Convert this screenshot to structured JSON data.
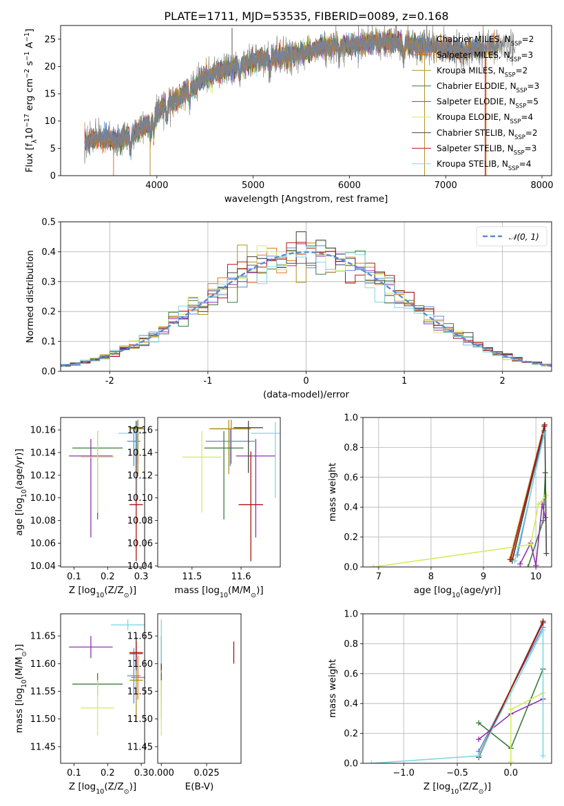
{
  "title": "PLATE=1711, MJD=53535, FIBERID=0089, z=0.168",
  "colors": [
    "#5a88d8",
    "#e07020",
    "#b09020",
    "#3a7a3a",
    "#9030b0",
    "#d4ea60",
    "#444444",
    "#b01010",
    "#7dd8e0"
  ],
  "series_names": [
    "Chabrier MILES, N_SSP=2",
    "Salpeter MILES, N_SSP=3",
    "Kroupa MILES, N_SSP=2",
    "Chabrier ELODIE, N_SSP=3",
    "Salpeter ELODIE, N_SSP=5",
    "Kroupa ELODIE, N_SSP=4",
    "Chabrier STELIB, N_SSP=2",
    "Salpeter STELIB, N_SSP=3",
    "Kroupa STELIB, N_SSP=4"
  ],
  "chart_data": [
    {
      "id": "spectrum",
      "type": "line",
      "xlabel": "wavelength [Angstrom, rest frame]",
      "ylabel": "Flux [f_λ 10^-17 erg cm^-2 s^-1 A^-1]",
      "xlim": [
        3000,
        8100
      ],
      "ylim": [
        0,
        27.5
      ],
      "xticks": [
        4000,
        5000,
        6000,
        7000,
        8000
      ],
      "yticks": [
        0,
        5,
        10,
        15,
        20,
        25
      ],
      "legend": "right",
      "continuum_x": [
        3250,
        3400,
        3600,
        3800,
        3950,
        4050,
        4200,
        4350,
        4500,
        4700,
        4900,
        5100,
        5400,
        5700,
        6000,
        6400,
        6800,
        7200,
        7600
      ],
      "continuum_y": [
        6.0,
        7.0,
        6.5,
        8.0,
        10.0,
        12.5,
        14.0,
        16.0,
        18.0,
        19.5,
        20.5,
        21.5,
        22.0,
        23.5,
        24.0,
        24.5,
        23.5,
        23.0,
        24.0
      ]
    },
    {
      "id": "residuals",
      "type": "line",
      "xlabel": "(data-model)/error",
      "ylabel": "Normed distribution",
      "xlim": [
        -2.5,
        2.5
      ],
      "ylim": [
        0,
        0.5
      ],
      "xticks": [
        -2,
        -1,
        0,
        1,
        2
      ],
      "yticks": [
        0.0,
        0.1,
        0.2,
        0.3,
        0.4,
        0.5
      ],
      "grid": true,
      "legend": "top-right",
      "legend_label": "𝒩(0, 1)"
    },
    {
      "id": "age-vs-z",
      "type": "scatter",
      "xlabel": "Z [log10(Z/Z☉)]",
      "ylabel": "age  [log10(age/yr)]",
      "xlim": [
        0.06,
        0.31
      ],
      "ylim": [
        10.039,
        10.171
      ],
      "xticks": [
        0.1,
        0.2,
        0.3
      ],
      "yticks": [
        10.04,
        10.06,
        10.08,
        10.1,
        10.12,
        10.14,
        10.16
      ],
      "points": [
        {
          "x": 0.278,
          "y": 10.15,
          "xerr": 0.02,
          "yerr_lo": 0.022,
          "yerr_hi": 0.011
        },
        {
          "x": 0.29,
          "y": 10.161,
          "xerr": 0.02,
          "yerr_lo": 0.031,
          "yerr_hi": 0.008
        },
        {
          "x": 0.29,
          "y": 10.161,
          "xerr": 0.02,
          "yerr_lo": 0.04,
          "yerr_hi": 0.008
        },
        {
          "x": 0.17,
          "y": 10.144,
          "xerr": 0.075,
          "yerr_lo": 0.063,
          "yerr_hi": 0.015
        },
        {
          "x": 0.15,
          "y": 10.137,
          "xerr": 0.065,
          "yerr_lo": 0.072,
          "yerr_hi": 0.015
        },
        {
          "x": 0.17,
          "y": 10.136,
          "xerr": 0.05,
          "yerr_lo": 0.049,
          "yerr_hi": 0.023
        },
        {
          "x": 0.285,
          "y": 10.162,
          "xerr": 0.02,
          "yerr_lo": 0.04,
          "yerr_hi": 0.006
        },
        {
          "x": 0.285,
          "y": 10.094,
          "xerr": 0.02,
          "yerr_lo": 0.05,
          "yerr_hi": 0.047
        },
        {
          "x": 0.287,
          "y": 10.157,
          "xerr": 0.055,
          "yerr_lo": 0.057,
          "yerr_hi": 0.01
        }
      ]
    },
    {
      "id": "age-vs-mass",
      "type": "scatter",
      "xlabel": "mass [log10(M/M☉)]",
      "xlim": [
        11.43,
        11.68
      ],
      "ylim": [
        10.039,
        10.171
      ],
      "xticks": [
        11.5,
        11.6
      ],
      "yticks": [
        10.04,
        10.06,
        10.08,
        10.1,
        10.12,
        10.14,
        10.16
      ],
      "points": [
        {
          "x": 11.578,
          "y": 10.15,
          "xerr": 0.05,
          "yerr_lo": 0.022,
          "yerr_hi": 0.011
        },
        {
          "x": 11.58,
          "y": 10.161,
          "xerr": 0.04,
          "yerr_lo": 0.031,
          "yerr_hi": 0.008
        },
        {
          "x": 11.575,
          "y": 10.161,
          "xerr": 0.04,
          "yerr_lo": 0.04,
          "yerr_hi": 0.008
        },
        {
          "x": 11.565,
          "y": 10.144,
          "xerr": 0.04,
          "yerr_lo": 0.063,
          "yerr_hi": 0.015
        },
        {
          "x": 11.63,
          "y": 10.137,
          "xerr": 0.04,
          "yerr_lo": 0.072,
          "yerr_hi": 0.015
        },
        {
          "x": 11.52,
          "y": 10.136,
          "xerr": 0.04,
          "yerr_lo": 0.049,
          "yerr_hi": 0.023
        },
        {
          "x": 11.615,
          "y": 10.162,
          "xerr": 0.03,
          "yerr_lo": 0.04,
          "yerr_hi": 0.006
        },
        {
          "x": 11.62,
          "y": 10.094,
          "xerr": 0.025,
          "yerr_lo": 0.05,
          "yerr_hi": 0.047
        },
        {
          "x": 11.67,
          "y": 10.157,
          "xerr": 0.05,
          "yerr_lo": 0.057,
          "yerr_hi": 0.01
        }
      ]
    },
    {
      "id": "massweight-vs-age",
      "type": "line",
      "xlabel": "age  [log10(age/yr)]",
      "ylabel": "mass weight",
      "xlim": [
        6.7,
        10.3
      ],
      "ylim": [
        0,
        1.0
      ],
      "xticks": [
        7,
        8,
        9,
        10
      ],
      "yticks": [
        0.0,
        0.2,
        0.4,
        0.6,
        0.8,
        1.0
      ],
      "grid": true,
      "series": [
        {
          "x": [
            9.65,
            10.15
          ],
          "y": [
            0.08,
            0.91
          ]
        },
        {
          "x": [
            9.55,
            10.17
          ],
          "y": [
            0.05,
            0.95
          ]
        },
        {
          "x": [
            9.5,
            10.16
          ],
          "y": [
            0.05,
            0.95
          ]
        },
        {
          "x": [
            9.85,
            10.14,
            10.18
          ],
          "y": [
            0.0,
            0.31,
            0.63
          ]
        },
        {
          "x": [
            9.7,
            9.9,
            10.0,
            10.12,
            10.18
          ],
          "y": [
            0.02,
            0.16,
            0.01,
            0.42,
            0.33
          ]
        },
        {
          "x": [
            6.9,
            9.9,
            10.05,
            10.2
          ],
          "y": [
            0.0,
            0.15,
            0.42,
            0.48
          ]
        },
        {
          "x": [
            9.55,
            10.17,
            10.2
          ],
          "y": [
            0.04,
            0.95,
            0.09
          ]
        },
        {
          "x": [
            9.52,
            10.16
          ],
          "y": [
            0.05,
            0.94
          ]
        },
        {
          "x": [
            9.6,
            10.16
          ],
          "y": [
            0.04,
            0.89
          ]
        }
      ]
    },
    {
      "id": "mass-vs-z",
      "type": "scatter",
      "xlabel": "Z [log10(Z/Z☉)]",
      "ylabel": "mass [log10(M/M☉)]",
      "xlim": [
        0.06,
        0.31
      ],
      "ylim": [
        11.42,
        11.69
      ],
      "xticks": [
        0.1,
        0.2,
        0.3
      ],
      "yticks": [
        11.45,
        11.5,
        11.55,
        11.6,
        11.65
      ],
      "points": [
        {
          "x": 0.278,
          "y": 11.578,
          "xerr": 0.02,
          "yerr": 0.05
        },
        {
          "x": 0.29,
          "y": 11.575,
          "xerr": 0.02,
          "yerr": 0.04
        },
        {
          "x": 0.285,
          "y": 11.57,
          "xerr": 0.02,
          "yerr": 0.07
        },
        {
          "x": 0.17,
          "y": 11.563,
          "xerr": 0.075,
          "yerr": 0.02
        },
        {
          "x": 0.15,
          "y": 11.63,
          "xerr": 0.065,
          "yerr": 0.02
        },
        {
          "x": 0.17,
          "y": 11.52,
          "xerr": 0.05,
          "yerr": 0.05
        },
        {
          "x": 0.285,
          "y": 11.618,
          "xerr": 0.02,
          "yerr": 0.03
        },
        {
          "x": 0.285,
          "y": 11.62,
          "xerr": 0.02,
          "yerr": 0.02
        },
        {
          "x": 0.26,
          "y": 11.67,
          "xerr": 0.05,
          "yerr": 0.01
        }
      ]
    },
    {
      "id": "mass-vs-ebv",
      "type": "scatter",
      "xlabel": "E(B-V)",
      "xlim": [
        -0.002,
        0.044
      ],
      "ylim": [
        11.42,
        11.69
      ],
      "xticks": [
        0.0,
        0.025
      ],
      "yticks": [
        11.45,
        11.5,
        11.55,
        11.6,
        11.65
      ],
      "points": [
        {
          "x": 0.0,
          "y": 11.578,
          "yerr": 0.05
        },
        {
          "x": 0.0,
          "y": 11.575,
          "yerr": 0.04
        },
        {
          "x": 0.0,
          "y": 11.57,
          "yerr": 0.07
        },
        {
          "x": 0.0,
          "y": 11.563,
          "yerr": 0.02
        },
        {
          "x": 0.0,
          "y": 11.63,
          "yerr": 0.02
        },
        {
          "x": 0.0,
          "y": 11.52,
          "yerr": 0.05
        },
        {
          "x": 0.0,
          "y": 11.618,
          "yerr": 0.03
        },
        {
          "x": 0.04,
          "y": 11.62,
          "yerr": 0.02
        },
        {
          "x": 0.0,
          "y": 11.64,
          "yerr": 0.04
        }
      ]
    },
    {
      "id": "massweight-vs-z",
      "type": "line",
      "xlabel": "Z [log10(Z/Z☉)]",
      "ylabel": "mass weight",
      "xlim": [
        -1.38,
        0.38
      ],
      "ylim": [
        0,
        1.0
      ],
      "xticks": [
        -1.0,
        -0.5,
        0.0
      ],
      "yticks": [
        0.0,
        0.2,
        0.4,
        0.6,
        0.8,
        1.0
      ],
      "grid": true,
      "series": [
        {
          "x": [
            -0.3,
            0.3
          ],
          "y": [
            0.08,
            0.91
          ]
        },
        {
          "x": [
            -0.3,
            0.3
          ],
          "y": [
            0.05,
            0.95
          ]
        },
        {
          "x": [
            -0.3,
            0.3
          ],
          "y": [
            0.05,
            0.95
          ]
        },
        {
          "x": [
            -0.3,
            0.0,
            0.3
          ],
          "y": [
            0.27,
            0.1,
            0.63
          ]
        },
        {
          "x": [
            -0.3,
            0.0,
            0.3
          ],
          "y": [
            0.16,
            0.33,
            0.43
          ]
        },
        {
          "x": [
            0.0,
            0.0,
            0.3
          ],
          "y": [
            0.01,
            0.36,
            0.47
          ]
        },
        {
          "x": [
            -0.3,
            0.3
          ],
          "y": [
            0.04,
            0.95
          ]
        },
        {
          "x": [
            -0.3,
            0.3
          ],
          "y": [
            0.05,
            0.94
          ]
        },
        {
          "x": [
            -1.3,
            -0.3,
            0.3,
            0.3
          ],
          "y": [
            0.0,
            0.05,
            0.89,
            0.05
          ]
        }
      ]
    }
  ]
}
